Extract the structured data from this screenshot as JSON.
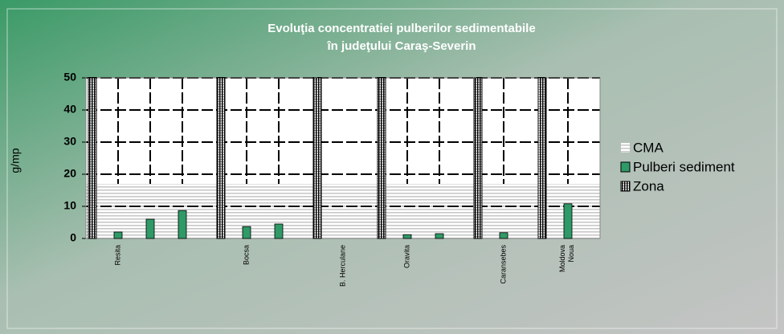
{
  "chart_data": {
    "type": "bar",
    "title": [
      "Evoluţia concentratiei  pulberilor sedimentabile",
      "în judeţului Caraş-Severin"
    ],
    "y_label": "g/mp",
    "categories": [
      "Resita",
      null,
      null,
      null,
      "Bocsa",
      null,
      null,
      "B. Herculane",
      null,
      "Oravita",
      null,
      null,
      "Caransebes",
      null,
      "Moldova Noua",
      null
    ],
    "series": [
      {
        "name": "CMA",
        "color": "#c8c8c8",
        "kind": "area",
        "values": [
          17,
          17,
          17,
          17,
          17,
          17,
          17,
          17,
          17,
          17,
          17,
          17,
          17,
          17,
          17,
          17
        ]
      },
      {
        "name": "Pulberi sediment",
        "color": "#2f9a67",
        "kind": "bar",
        "values": [
          2,
          6,
          8.7,
          null,
          3.7,
          4.5,
          null,
          null,
          null,
          1.2,
          1.5,
          null,
          1.8,
          null,
          10.8,
          null
        ]
      },
      {
        "name": "Zona",
        "color": "#000000",
        "kind": "hatch",
        "values": [
          50,
          null,
          null,
          null,
          50,
          null,
          null,
          50,
          null,
          50,
          null,
          null,
          50,
          null,
          50,
          null
        ]
      }
    ],
    "ylim": [
      0,
      50
    ],
    "yticks": [
      0,
      10,
      20,
      30,
      40,
      50
    ],
    "grid": true,
    "legend": "right"
  }
}
